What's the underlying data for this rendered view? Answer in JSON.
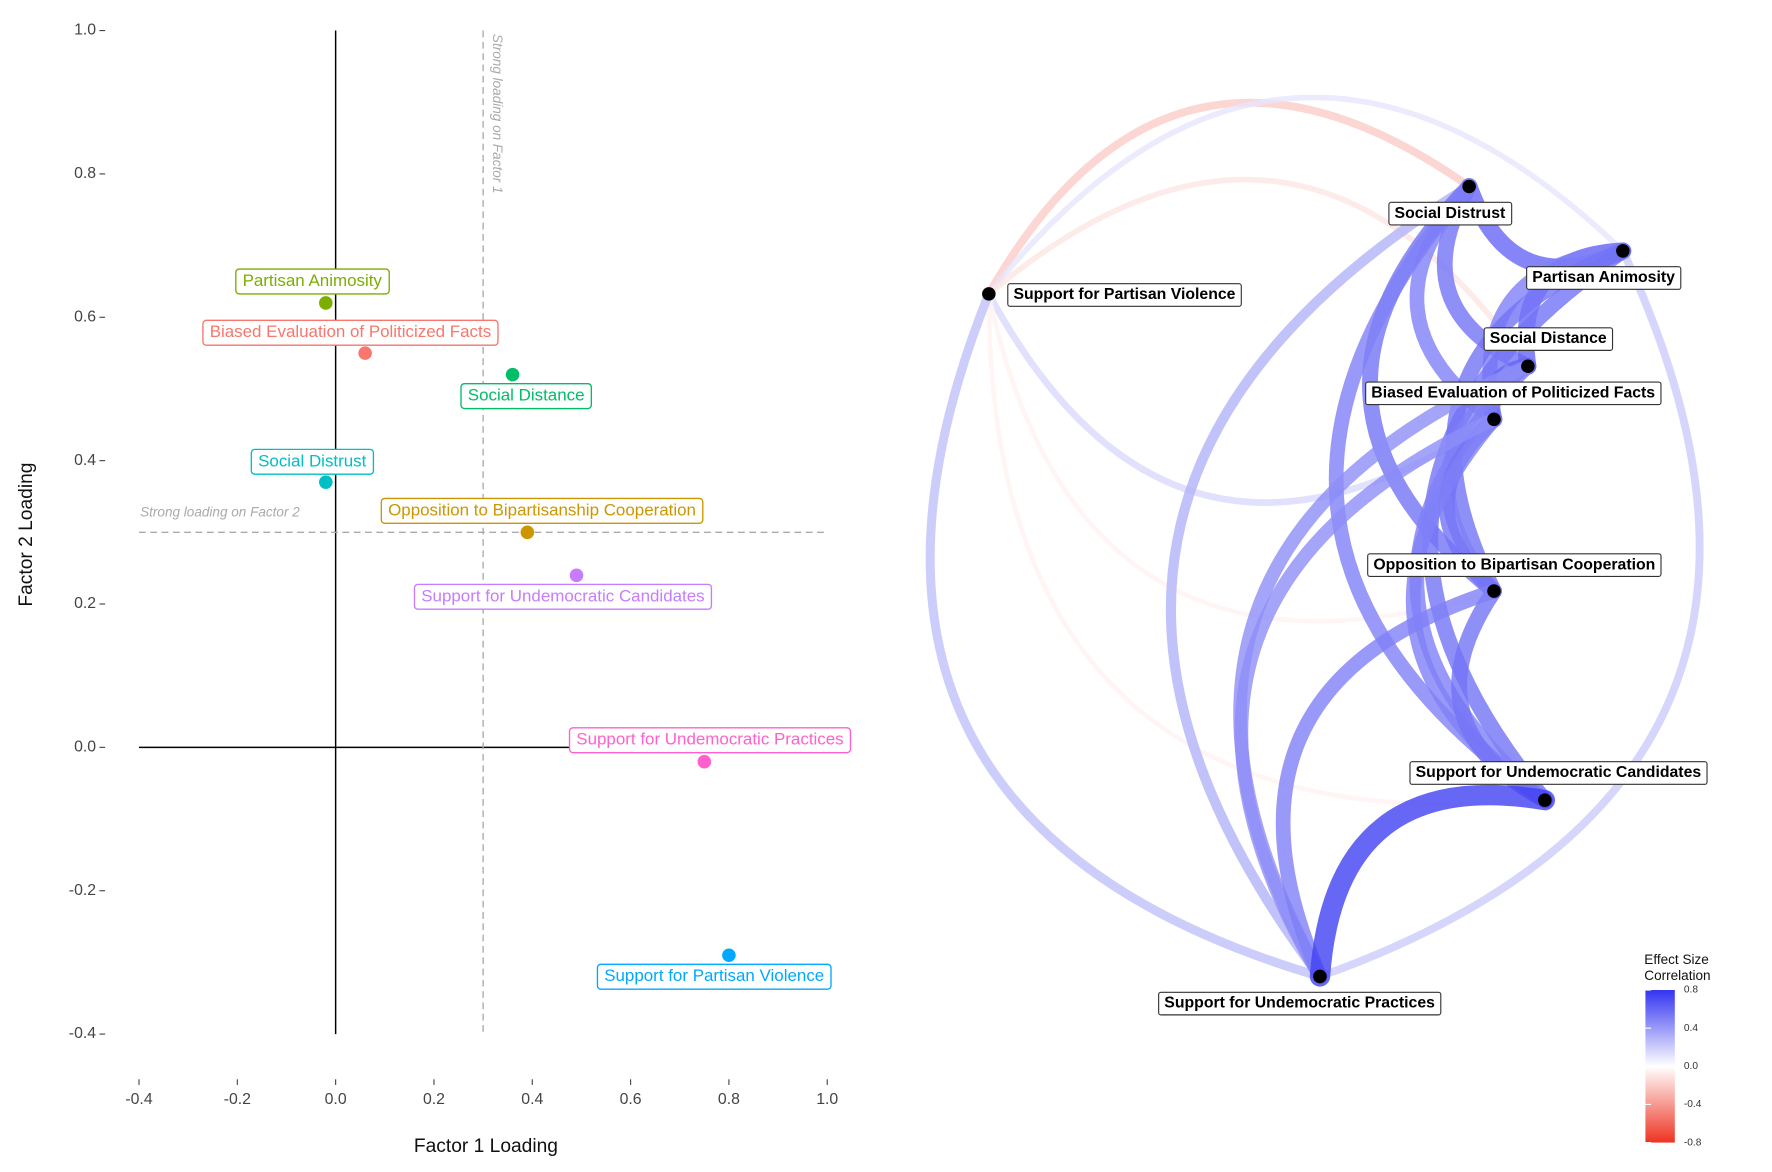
{
  "chart_data": [
    {
      "type": "scatter",
      "x_label": "Factor 1 Loading",
      "y_label": "Factor 2 Loading",
      "xlim": [
        -0.4,
        1.0
      ],
      "ylim": [
        -0.4,
        1.0
      ],
      "xticks": [
        -0.4,
        -0.2,
        {
          "value": 0,
          "label": "0.0"
        },
        0.2,
        0.4,
        0.6,
        0.8,
        {
          "value": 1,
          "label": "1.0"
        }
      ],
      "yticks": [
        -0.4,
        -0.2,
        {
          "value": 0,
          "label": "0.0"
        },
        0.2,
        0.4,
        0.6,
        0.8,
        {
          "value": 1,
          "label": "1.0"
        }
      ],
      "reference_lines": [
        {
          "axis": "x",
          "value": 0.3,
          "label": "Strong loading on Factor 1"
        },
        {
          "axis": "y",
          "value": 0.3,
          "label": "Strong loading on Factor 2"
        }
      ],
      "labels": [
        "Partisan Animosity",
        "Biased Evaluation of Politicized Facts",
        "Social Distance",
        "Social Distrust",
        "Opposition to Bipartisanship Cooperation",
        "Support for Undemocratic Candidates",
        "Support for Undemocratic Practices",
        "Support for Partisan Violence"
      ],
      "x": [
        -0.02,
        0.06,
        0.36,
        -0.02,
        0.39,
        0.49,
        0.75,
        0.8
      ],
      "values": [
        0.62,
        0.55,
        0.52,
        0.37,
        0.3,
        0.24,
        -0.02,
        -0.29
      ],
      "colors": [
        "#7CAE00",
        "#F8766D",
        "#00BE67",
        "#00BFC4",
        "#CD9600",
        "#C77CFF",
        "#FF61CC",
        "#00A9FF"
      ]
    },
    {
      "type": "network",
      "nodes": [
        "Social Distrust",
        "Partisan Animosity",
        "Social Distance",
        "Biased Evaluation of Politicized Facts",
        "Opposition to Bipartisan Cooperation",
        "Support for Undemocratic Candidates",
        "Support for Undemocratic Practices",
        "Support for Partisan Violence"
      ],
      "edges": [
        {
          "source": "Social Distrust",
          "target": "Support for Partisan Violence",
          "value": -0.2
        },
        {
          "source": "Partisan Animosity",
          "target": "Support for Partisan Violence",
          "value": 0.1
        },
        {
          "source": "Social Distance",
          "target": "Support for Partisan Violence",
          "value": -0.1
        },
        {
          "source": "Support for Partisan Violence",
          "target": "Biased Evaluation of Politicized Facts",
          "value": 0.15
        },
        {
          "source": "Support for Partisan Violence",
          "target": "Opposition to Bipartisan Cooperation",
          "value": -0.05
        },
        {
          "source": "Support for Partisan Violence",
          "target": "Support for Undemocratic Candidates",
          "value": -0.05
        },
        {
          "source": "Support for Partisan Violence",
          "target": "Support for Undemocratic Practices",
          "value": 0.25
        },
        {
          "source": "Social Distrust",
          "target": "Support for Undemocratic Practices",
          "value": 0.3
        },
        {
          "source": "Support for Undemocratic Practices",
          "target": "Partisan Animosity",
          "value": 0.2
        },
        {
          "source": "Social Distrust",
          "target": "Partisan Animosity",
          "value": 0.6
        },
        {
          "source": "Social Distrust",
          "target": "Social Distance",
          "value": 0.55
        },
        {
          "source": "Social Distrust",
          "target": "Biased Evaluation of Politicized Facts",
          "value": 0.5
        },
        {
          "source": "Social Distrust",
          "target": "Opposition to Bipartisan Cooperation",
          "value": 0.55
        },
        {
          "source": "Social Distrust",
          "target": "Support for Undemocratic Candidates",
          "value": 0.5
        },
        {
          "source": "Partisan Animosity",
          "target": "Social Distance",
          "value": 0.6
        },
        {
          "source": "Partisan Animosity",
          "target": "Biased Evaluation of Politicized Facts",
          "value": 0.5
        },
        {
          "source": "Partisan Animosity",
          "target": "Opposition to Bipartisan Cooperation",
          "value": 0.55
        },
        {
          "source": "Partisan Animosity",
          "target": "Support for Undemocratic Candidates",
          "value": 0.55
        },
        {
          "source": "Social Distance",
          "target": "Biased Evaluation of Politicized Facts",
          "value": 0.6
        },
        {
          "source": "Social Distance",
          "target": "Opposition to Bipartisan Cooperation",
          "value": 0.5
        },
        {
          "source": "Social Distance",
          "target": "Support for Undemocratic Candidates",
          "value": 0.5
        },
        {
          "source": "Biased Evaluation of Politicized Facts",
          "target": "Opposition to Bipartisan Cooperation",
          "value": 0.55
        },
        {
          "source": "Biased Evaluation of Politicized Facts",
          "target": "Support for Undemocratic Candidates",
          "value": 0.5
        },
        {
          "source": "Opposition to Bipartisan Cooperation",
          "target": "Support for Undemocratic Candidates",
          "value": 0.55
        },
        {
          "source": "Social Distance",
          "target": "Support for Undemocratic Practices",
          "value": 0.45
        },
        {
          "source": "Biased Evaluation of Politicized Facts",
          "target": "Support for Undemocratic Practices",
          "value": 0.45
        },
        {
          "source": "Opposition to Bipartisan Cooperation",
          "target": "Support for Undemocratic Practices",
          "value": 0.5
        },
        {
          "source": "Support for Undemocratic Candidates",
          "target": "Support for Undemocratic Practices",
          "value": 0.75
        }
      ],
      "legend_title": [
        "Effect Size",
        "Correlation"
      ],
      "color_low": "#ee3322",
      "color_mid": "#ffffff",
      "color_high": "#3434f2",
      "clim": [
        -0.8,
        0.8
      ],
      "cticks": [
        0.8,
        0.4,
        {
          "value": 0,
          "label": "0.0"
        },
        -0.4,
        -0.8
      ]
    }
  ]
}
